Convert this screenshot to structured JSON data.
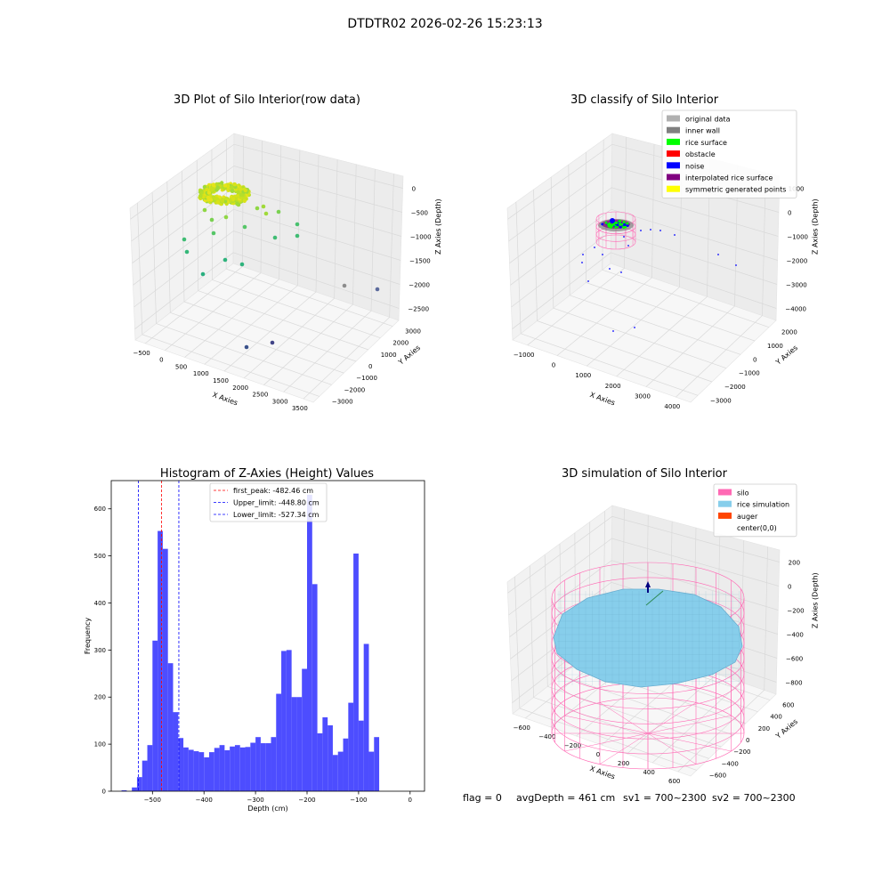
{
  "page": {
    "title": "DTDTR02 2026-02-26 15:23:13",
    "footer": {
      "flag": "flag = 0",
      "avg_depth": "avgDepth = 461 cm",
      "sv1": "sv1 = 700~2300",
      "sv2": "sv2 = 700~2300"
    }
  },
  "chart_data": [
    {
      "id": "raw",
      "type": "scatter",
      "title": "3D Plot of Silo Interior(row data)",
      "xlabel": "X Axies",
      "ylabel": "Y Axies",
      "zlabel": "Z Axies (Depth)",
      "x_ticks": [
        "−500",
        "0",
        "500",
        "1000",
        "1500",
        "2000",
        "2500",
        "3000",
        "3500"
      ],
      "y_ticks": [
        "−3000",
        "−2000",
        "−1000",
        "0",
        "1000",
        "2000",
        "3000"
      ],
      "z_ticks": [
        "0",
        "−500",
        "−1000",
        "−1500",
        "−2000",
        "−2500"
      ],
      "grid": true,
      "colormap": "viridis by depth"
    },
    {
      "id": "classify",
      "type": "scatter",
      "title": "3D classify of Silo Interior",
      "xlabel": "X Axies",
      "ylabel": "Y Axies",
      "zlabel": "Z Axies (Depth)",
      "x_ticks": [
        "−1000",
        "0",
        "1000",
        "2000",
        "3000",
        "4000"
      ],
      "y_ticks": [
        "−3000",
        "−2000",
        "−1000",
        "0",
        "1000",
        "2000"
      ],
      "z_ticks": [
        "1000",
        "0",
        "−1000",
        "−2000",
        "−3000",
        "−4000"
      ],
      "grid": true,
      "legend_position": "top-right",
      "legend": [
        {
          "label": "original data",
          "color": "#b0b0b0"
        },
        {
          "label": "inner wall",
          "color": "#808080"
        },
        {
          "label": "rice surface",
          "color": "#00ff00"
        },
        {
          "label": "obstacle",
          "color": "#ff0000"
        },
        {
          "label": "noise",
          "color": "#0000ff"
        },
        {
          "label": "interpolated rice surface",
          "color": "#800080"
        },
        {
          "label": "symmetric generated points",
          "color": "#ffff00"
        }
      ]
    },
    {
      "id": "histogram",
      "type": "bar",
      "title": "Histogram of Z-Axies (Height) Values",
      "xlabel": "Depth (cm)",
      "ylabel": "Frequency",
      "xlim": [
        -580,
        28
      ],
      "ylim": [
        0,
        660
      ],
      "x_ticks": [
        -500,
        -400,
        -300,
        -200,
        -100,
        0
      ],
      "y_ticks": [
        0,
        100,
        200,
        300,
        400,
        500,
        600
      ],
      "bar_color": "#4d4dff",
      "bin_start": -560,
      "bin_width": 10,
      "values": [
        2,
        0,
        8,
        30,
        65,
        98,
        320,
        553,
        515,
        272,
        168,
        113,
        93,
        88,
        85,
        83,
        72,
        83,
        92,
        98,
        87,
        95,
        98,
        93,
        94,
        103,
        115,
        102,
        102,
        115,
        207,
        298,
        300,
        200,
        200,
        260,
        630,
        440,
        123,
        157,
        140,
        77,
        84,
        112,
        188,
        505,
        150,
        313,
        84,
        115
      ],
      "vlines": [
        {
          "x": -482.46,
          "color": "#ff0000",
          "label": "first_peak: -482.46 cm"
        },
        {
          "x": -448.8,
          "color": "#0000ff",
          "label": "Upper_limit: -448.80 cm"
        },
        {
          "x": -527.34,
          "color": "#0000ff",
          "label": "Lower_limit: -527.34 cm"
        }
      ],
      "legend_position": "top-center"
    },
    {
      "id": "simulation",
      "type": "surface",
      "title": "3D simulation of Silo Interior",
      "xlabel": "X Axies",
      "ylabel": "Y Axies",
      "zlabel": "Z Axies (Depth)",
      "x_ticks": [
        "−600",
        "−400",
        "−200",
        "0",
        "200",
        "400",
        "600"
      ],
      "y_ticks": [
        "−600",
        "−400",
        "−200",
        "0",
        "200",
        "400",
        "600"
      ],
      "z_ticks": [
        "200",
        "0",
        "−200",
        "−400",
        "−600",
        "−800"
      ],
      "grid": true,
      "legend_position": "top-right",
      "legend": [
        {
          "label": "silo",
          "color": "#ff69b4"
        },
        {
          "label": "rice simulation",
          "color": "#87ceeb"
        },
        {
          "label": "auger",
          "color": "#ff4500"
        },
        {
          "label": "center(0,0)",
          "color": "#ffffff"
        }
      ]
    }
  ]
}
